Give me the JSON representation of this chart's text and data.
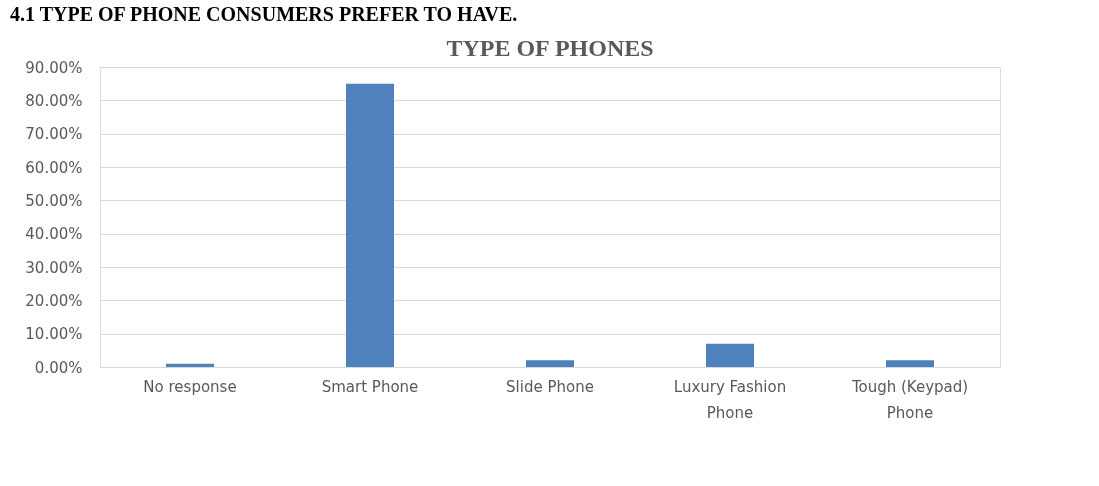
{
  "chart_data": {
    "type": "bar",
    "title": "TYPE OF PHONES",
    "annotations": [
      "4.1 TYPE OF PHONE CONSUMERS PREFER TO HAVE."
    ],
    "categories": [
      "No response",
      "Smart Phone",
      "Slide Phone",
      "Luxury Fashion Phone",
      "Tough (Keypad) Phone"
    ],
    "values": [
      1,
      85,
      2,
      7,
      2
    ],
    "color": "#4f81bd",
    "ylim": [
      0,
      90
    ],
    "yticks": [
      {
        "value": 0,
        "label": "0.00%"
      },
      {
        "value": 10,
        "label": "10.00%"
      },
      {
        "value": 20,
        "label": "20.00%"
      },
      {
        "value": 30,
        "label": "30.00%"
      },
      {
        "value": 40,
        "label": "40.00%"
      },
      {
        "value": 50,
        "label": "50.00%"
      },
      {
        "value": 60,
        "label": "60.00%"
      },
      {
        "value": 70,
        "label": "70.00%"
      },
      {
        "value": 80,
        "label": "80.00%"
      },
      {
        "value": 90,
        "label": "90.00%"
      }
    ],
    "grid": "y"
  }
}
